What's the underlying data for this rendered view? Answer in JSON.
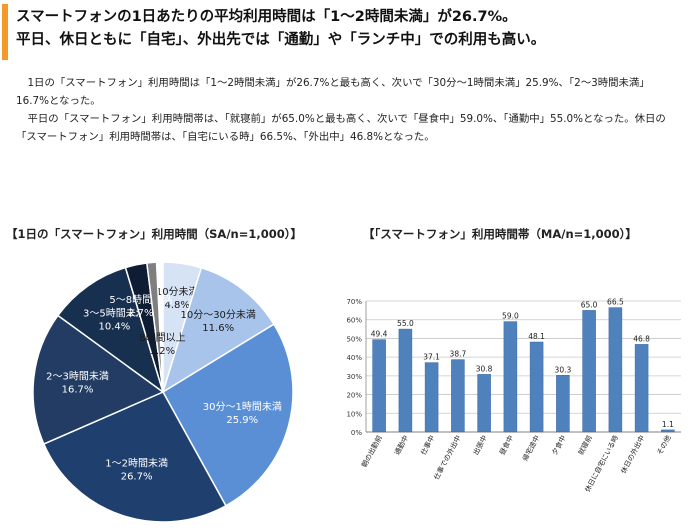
{
  "headline": {
    "line1": "スマートフォンの1日あたりの平均利用時間は「1～2時間未満」が26.7%。",
    "line2": "平日、休日ともに「自宅」、外出先では「通勤」や「ランチ中」での利用も高い。"
  },
  "body": {
    "para1": "1日の「スマートフォン」利用時間は「1～2時間未満」が26.7%と最も高く、次いで「30分～1時間未満」25.9%、「2～3時間未満」16.7%となった。",
    "para2": "平日の「スマートフォン」利用時間帯は、「就寝前」が65.0%と最も高く、次いで「昼食中」59.0%、「通勤中」55.0%となった。休日の「スマートフォン」利用時間帯は、「自宅にいる時」66.5%、「外出中」46.8%となった。"
  },
  "pie_title": "【1日の「スマートフォン」利用時間（SA/n=1,000）】",
  "bar_title": "【「スマートフォン」利用時間帯（MA/n=1,000）】",
  "colors": {
    "accent": "#f39a2b",
    "bar_fill": "#4f81bd",
    "pie": [
      "#d6e3f4",
      "#a9c4ea",
      "#5a8fd6",
      "#1f3f6e",
      "#223c63",
      "#17304f",
      "#0e1d33",
      "#7f7f7f",
      "#404040"
    ]
  },
  "chart_data": [
    {
      "type": "pie",
      "title": "",
      "slices": [
        {
          "label": "10分未満",
          "value": 4.8
        },
        {
          "label": "10分～30分未満",
          "value": 11.6
        },
        {
          "label": "30分～1時間未満",
          "value": 25.9
        },
        {
          "label": "1～2時間未満",
          "value": 26.7
        },
        {
          "label": "2～3時間未満",
          "value": 16.7
        },
        {
          "label": "3～5時間未満",
          "value": 10.4
        },
        {
          "label": "5～8時間未満",
          "value": 2.7
        },
        {
          "label": "8時間以上",
          "value": 1.2
        }
      ],
      "value_suffix": "%",
      "start_angle": "12 o'clock",
      "direction": "clockwise"
    },
    {
      "type": "bar",
      "title": "",
      "categories": [
        "朝の出勤前",
        "通勤中",
        "仕事中",
        "仕事での外出中",
        "出張中",
        "昼食中",
        "帰宅途中",
        "夕食中",
        "就寝前",
        "休日に自宅にいる時",
        "休日の外出中",
        "その他"
      ],
      "values": [
        49.4,
        55.0,
        37.1,
        38.7,
        30.8,
        59.0,
        48.1,
        30.3,
        65.0,
        66.5,
        46.8,
        1.1
      ],
      "value_labels": [
        "49.4",
        "55.0",
        "37.1",
        "38.7",
        "30.8",
        "59.0",
        "48.1",
        "30.3",
        "65.0",
        "66.5",
        "46.8",
        "1.1"
      ],
      "ylim": [
        0,
        70
      ],
      "yticks": [
        "0%",
        "10%",
        "20%",
        "30%",
        "40%",
        "50%",
        "60%",
        "70%"
      ],
      "grid": true,
      "xlabel": "",
      "ylabel": ""
    }
  ]
}
